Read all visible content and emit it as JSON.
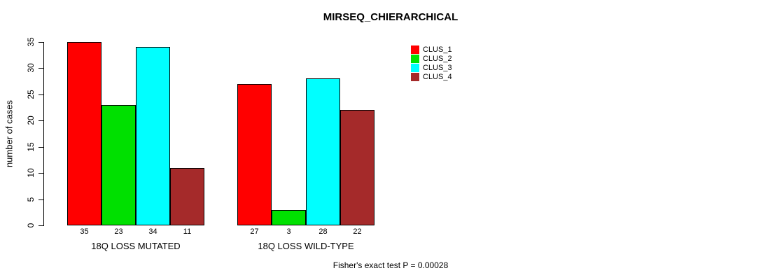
{
  "title": "MIRSEQ_CHIERARCHICAL",
  "footer": "Fisher's exact test P = 0.00028",
  "chart_data": {
    "type": "bar",
    "title": "MIRSEQ_CHIERARCHICAL",
    "xlabel": "",
    "ylabel": "number of cases",
    "categories": [
      "18Q LOSS MUTATED",
      "18Q LOSS WILD-TYPE"
    ],
    "series": [
      {
        "name": "CLUS_1",
        "color": "#ff0000",
        "values": [
          35,
          27
        ]
      },
      {
        "name": "CLUS_2",
        "color": "#00e000",
        "values": [
          23,
          3
        ]
      },
      {
        "name": "CLUS_3",
        "color": "#00ffff",
        "values": [
          34,
          28
        ]
      },
      {
        "name": "CLUS_4",
        "color": "#a52a2a",
        "values": [
          11,
          22
        ]
      }
    ],
    "bar_value_labels": [
      [
        "35",
        "23",
        "34",
        "11"
      ],
      [
        "27",
        "3",
        "28",
        "22"
      ]
    ],
    "y_ticks": [
      0,
      5,
      10,
      15,
      20,
      25,
      30,
      35
    ],
    "ylim": [
      0,
      35
    ],
    "grid": false,
    "legend_position": "top-right",
    "annotation": "Fisher's exact test P = 0.00028"
  }
}
